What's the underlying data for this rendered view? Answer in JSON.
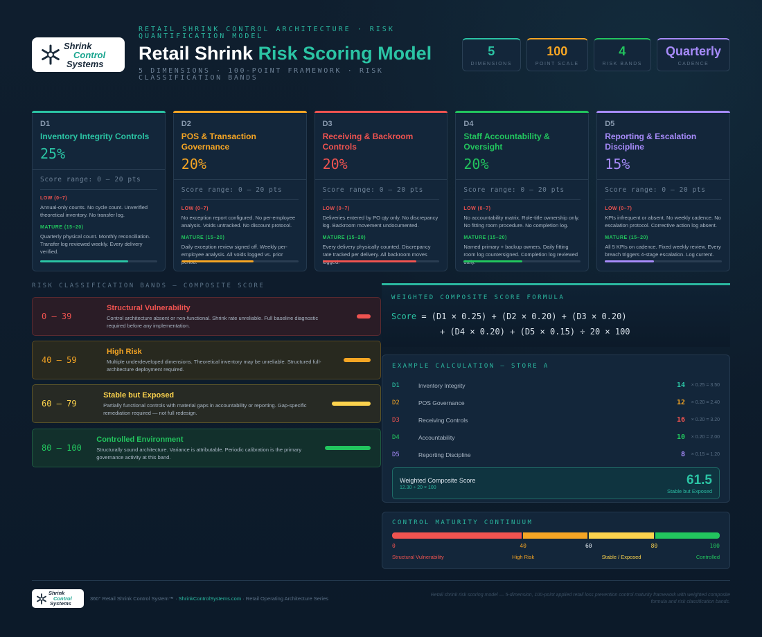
{
  "logo": {
    "line1": "Shrink",
    "line2": "Control",
    "line3": "Systems"
  },
  "header": {
    "eyebrow": "RETAIL SHRINK CONTROL ARCHITECTURE · RISK QUANTIFICATION MODEL",
    "title_plain": "Retail Shrink",
    "title_accent": "Risk Scoring Model",
    "subtitle": "5 DIMENSIONS · 100-POINT FRAMEWORK · RISK CLASSIFICATION BANDS"
  },
  "stats": [
    {
      "value": "5",
      "label": "DIMENSIONS",
      "color": "#2bc4a4"
    },
    {
      "value": "100",
      "label": "POINT SCALE",
      "color": "#f5a524"
    },
    {
      "value": "4",
      "label": "RISK BANDS",
      "color": "#22c55e"
    },
    {
      "value": "Quarterly",
      "label": "CADENCE",
      "color": "#a78bfa"
    }
  ],
  "dimensions": [
    {
      "code": "D1",
      "name": "Inventory Integrity Controls",
      "weight": "25%",
      "color": "#2bc4a4",
      "fill": 0.75,
      "range": "Score range: 0 – 20 pts",
      "low_label": "LOW (0–7)",
      "low_desc": "Annual-only counts. No cycle count. Unverified theoretical inventory. No transfer log.",
      "mature_label": "MATURE (15–20)",
      "mature_desc": "Quarterly physical count. Monthly reconciliation. Transfer log reviewed weekly. Every delivery verified."
    },
    {
      "code": "D2",
      "name": "POS & Transaction Governance",
      "weight": "20%",
      "color": "#f5a524",
      "fill": 0.62,
      "range": "Score range: 0 – 20 pts",
      "low_label": "LOW (0–7)",
      "low_desc": "No exception report configured. No per-employee analysis. Voids untracked. No discount protocol.",
      "mature_label": "MATURE (15–20)",
      "mature_desc": "Daily exception review signed off. Weekly per-employee analysis. All voids logged vs. prior period."
    },
    {
      "code": "D3",
      "name": "Receiving & Backroom Controls",
      "weight": "20%",
      "color": "#ef5350",
      "fill": 0.8,
      "range": "Score range: 0 – 20 pts",
      "low_label": "LOW (0–7)",
      "low_desc": "Deliveries entered by PO qty only. No discrepancy log. Backroom movement undocumented.",
      "mature_label": "MATURE (15–20)",
      "mature_desc": "Every delivery physically counted. Discrepancy rate tracked per delivery. All backroom moves logged."
    },
    {
      "code": "D4",
      "name": "Staff Accountability & Oversight",
      "weight": "20%",
      "color": "#22c55e",
      "fill": 0.5,
      "range": "Score range: 0 – 20 pts",
      "low_label": "LOW (0–7)",
      "low_desc": "No accountability matrix. Role-title ownership only. No fitting room procedure. No completion log.",
      "mature_label": "MATURE (15–20)",
      "mature_desc": "Named primary + backup owners. Daily fitting room log countersigned. Completion log reviewed daily."
    },
    {
      "code": "D5",
      "name": "Reporting & Escalation Discipline",
      "weight": "15%",
      "color": "#a78bfa",
      "fill": 0.42,
      "range": "Score range: 0 – 20 pts",
      "low_label": "LOW (0–7)",
      "low_desc": "KPIs infrequent or absent. No weekly cadence. No escalation protocol. Corrective action log absent.",
      "mature_label": "MATURE (15–20)",
      "mature_desc": "All 5 KPIs on cadence. Fixed weekly review. Every breach triggers 4-stage escalation. Log current."
    }
  ],
  "bands_label": "RISK CLASSIFICATION BANDS — COMPOSITE SCORE",
  "bands": [
    {
      "range": "0 — 39",
      "name": "Structural Vulnerability",
      "desc": "Control architecture absent or non-functional. Shrink rate unreliable. Full baseline diagnostic required before any implementation.",
      "color": "#ef5350",
      "bg": "#2a1c26",
      "border": "#5a2a30",
      "level": 0.25
    },
    {
      "range": "40 — 59",
      "name": "High Risk",
      "desc": "Multiple underdeveloped dimensions. Theoretical inventory may be unreliable. Structured full-architecture deployment required.",
      "color": "#f5a524",
      "bg": "#28291f",
      "border": "#5a4a22",
      "level": 0.5
    },
    {
      "range": "60 — 79",
      "name": "Stable but Exposed",
      "desc": "Partially functional controls with material gaps in accountability or reporting. Gap-specific remediation required — not full redesign.",
      "color": "#fcd34d",
      "bg": "#272a24",
      "border": "#5a5428",
      "level": 0.75
    },
    {
      "range": "80 — 100",
      "name": "Controlled Environment",
      "desc": "Structurally sound architecture. Variance is attributable. Periodic calibration is the primary governance activity at this band.",
      "color": "#22c55e",
      "bg": "#12302c",
      "border": "#1f5a40",
      "level": 1.0
    }
  ],
  "formula": {
    "label": "WEIGHTED COMPOSITE SCORE FORMULA",
    "keyword": "Score",
    "line1": "= (D1 × 0.25) + (D2 × 0.20) + (D3 × 0.20)",
    "line2": "+ (D4 × 0.20) + (D5 × 0.15) ÷ 20 × 100"
  },
  "example": {
    "label": "EXAMPLE CALCULATION — STORE A",
    "rows": [
      {
        "code": "D1",
        "name": "Inventory Integrity",
        "score": "14",
        "weighted": "× 0.25 = 3.50",
        "color": "#2bc4a4"
      },
      {
        "code": "D2",
        "name": "POS Governance",
        "score": "12",
        "weighted": "× 0.20 = 2.40",
        "color": "#f5a524"
      },
      {
        "code": "D3",
        "name": "Receiving Controls",
        "score": "16",
        "weighted": "× 0.20 = 3.20",
        "color": "#ef5350"
      },
      {
        "code": "D4",
        "name": "Accountability",
        "score": "10",
        "weighted": "× 0.20 = 2.00",
        "color": "#22c55e"
      },
      {
        "code": "D5",
        "name": "Reporting Discipline",
        "score": "8",
        "weighted": "× 0.15 = 1.20",
        "color": "#a78bfa"
      }
    ],
    "composite_title": "Weighted Composite Score",
    "composite_sub": "12.30 ÷ 20 × 100",
    "composite_value": "61.5",
    "composite_band": "Stable but Exposed"
  },
  "continuum": {
    "label": "CONTROL MATURITY CONTINUUM",
    "segments": [
      {
        "from": 0,
        "to": 40,
        "color": "#ef5350"
      },
      {
        "from": 40,
        "to": 60,
        "color": "#f5a524"
      },
      {
        "from": 60,
        "to": 80,
        "color": "#fcd34d"
      },
      {
        "from": 80,
        "to": 100,
        "color": "#22c55e"
      }
    ],
    "ticks": [
      {
        "value": 0,
        "label": "0",
        "color": "#ef5350"
      },
      {
        "value": 40,
        "label": "40",
        "color": "#f5a524"
      },
      {
        "value": 60,
        "label": "60",
        "color": "#e6edf3"
      },
      {
        "value": 80,
        "label": "80",
        "color": "#fcd34d"
      },
      {
        "value": 100,
        "label": "100",
        "color": "#22c55e"
      }
    ],
    "names": [
      {
        "at": 0,
        "label": "Structural Vulnerability",
        "color": "#ef5350"
      },
      {
        "at": 40,
        "label": "High Risk",
        "color": "#f5a524"
      },
      {
        "at": 70,
        "label": "Stable / Exposed",
        "color": "#fcd34d"
      },
      {
        "at": 100,
        "label": "Controlled",
        "color": "#22c55e"
      }
    ]
  },
  "footer": {
    "tagline": "360° Retail Shrink Control System™",
    "link": "ShrinkControlSystems.com",
    "series": "Retail Operating Architecture Series",
    "note": "Retail shrink risk scoring model — 5-dimension, 100-point applied retail loss prevention control maturity framework with weighted composite formula and risk classification bands."
  }
}
